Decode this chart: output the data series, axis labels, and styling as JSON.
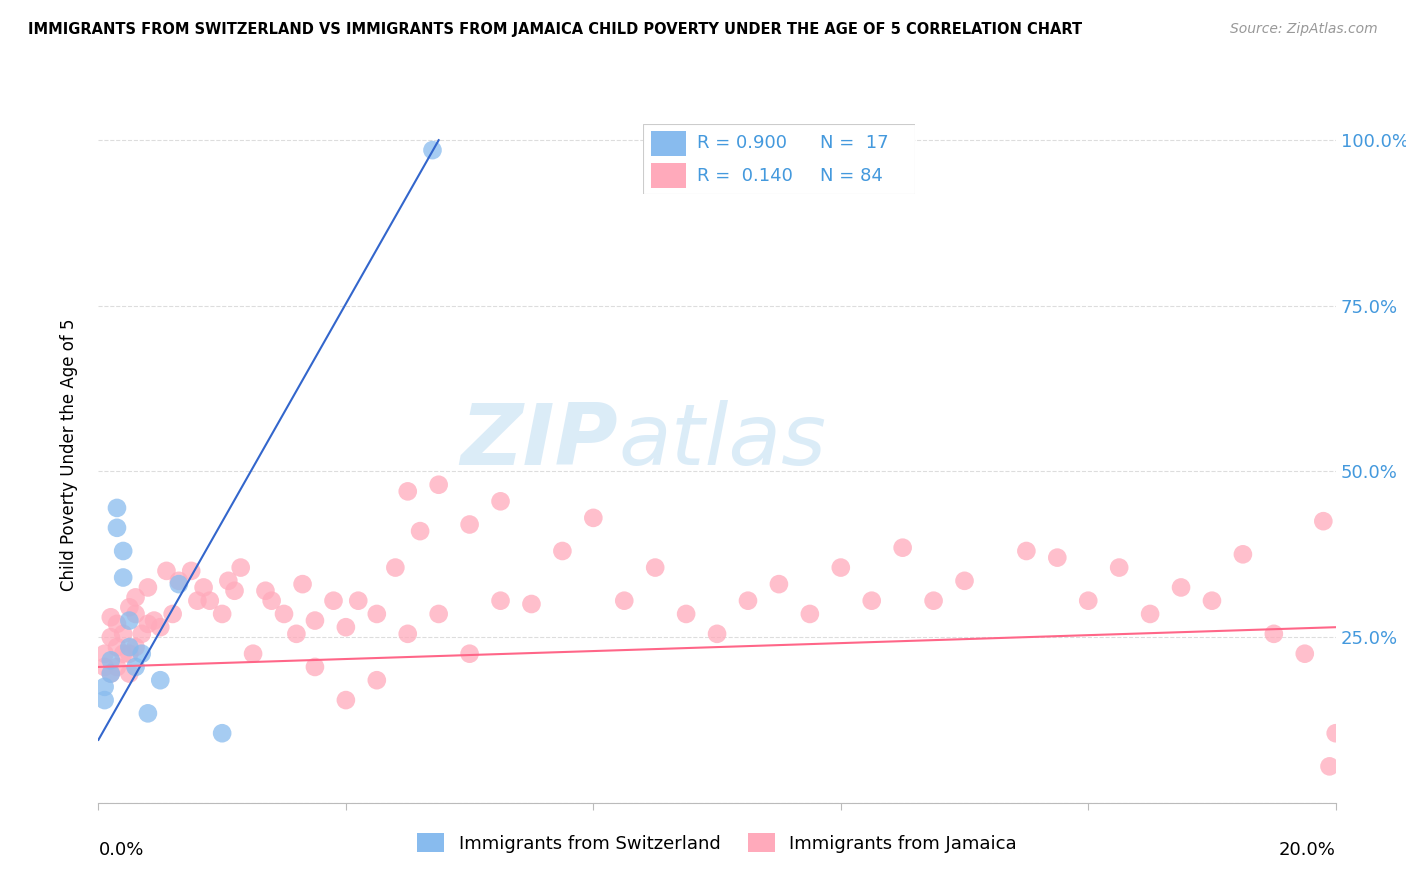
{
  "title": "IMMIGRANTS FROM SWITZERLAND VS IMMIGRANTS FROM JAMAICA CHILD POVERTY UNDER THE AGE OF 5 CORRELATION CHART",
  "source": "Source: ZipAtlas.com",
  "ylabel": "Child Poverty Under the Age of 5",
  "yticks": [
    0.0,
    0.25,
    0.5,
    0.75,
    1.0
  ],
  "ytick_labels": [
    "",
    "25.0%",
    "50.0%",
    "75.0%",
    "100.0%"
  ],
  "xlim": [
    0.0,
    0.2
  ],
  "ylim": [
    0.0,
    1.05
  ],
  "watermark1": "ZIP",
  "watermark2": "atlas",
  "color_swiss": "#88bbee",
  "color_jamaica": "#ffaabb",
  "color_swiss_line": "#3366cc",
  "color_jamaica_line": "#ff6688",
  "color_ytick": "#4499dd",
  "swiss_x": [
    0.001,
    0.001,
    0.002,
    0.002,
    0.003,
    0.003,
    0.004,
    0.004,
    0.005,
    0.005,
    0.006,
    0.007,
    0.008,
    0.01,
    0.013,
    0.02,
    0.054
  ],
  "swiss_y": [
    0.175,
    0.155,
    0.215,
    0.195,
    0.445,
    0.415,
    0.38,
    0.34,
    0.235,
    0.275,
    0.205,
    0.225,
    0.135,
    0.185,
    0.33,
    0.105,
    0.985
  ],
  "jamaica_x": [
    0.001,
    0.001,
    0.002,
    0.002,
    0.002,
    0.003,
    0.003,
    0.003,
    0.004,
    0.004,
    0.005,
    0.005,
    0.005,
    0.006,
    0.006,
    0.006,
    0.007,
    0.008,
    0.008,
    0.009,
    0.01,
    0.011,
    0.012,
    0.013,
    0.015,
    0.016,
    0.017,
    0.018,
    0.02,
    0.021,
    0.022,
    0.023,
    0.025,
    0.027,
    0.028,
    0.03,
    0.032,
    0.033,
    0.035,
    0.038,
    0.04,
    0.042,
    0.045,
    0.048,
    0.05,
    0.052,
    0.055,
    0.06,
    0.065,
    0.07,
    0.075,
    0.08,
    0.085,
    0.09,
    0.095,
    0.1,
    0.105,
    0.11,
    0.115,
    0.12,
    0.125,
    0.13,
    0.135,
    0.14,
    0.15,
    0.155,
    0.16,
    0.165,
    0.17,
    0.175,
    0.18,
    0.185,
    0.19,
    0.195,
    0.198,
    0.199,
    0.2,
    0.035,
    0.04,
    0.045,
    0.05,
    0.055,
    0.06,
    0.065
  ],
  "jamaica_y": [
    0.225,
    0.205,
    0.195,
    0.25,
    0.28,
    0.205,
    0.235,
    0.27,
    0.225,
    0.255,
    0.195,
    0.225,
    0.295,
    0.235,
    0.285,
    0.31,
    0.255,
    0.27,
    0.325,
    0.275,
    0.265,
    0.35,
    0.285,
    0.335,
    0.35,
    0.305,
    0.325,
    0.305,
    0.285,
    0.335,
    0.32,
    0.355,
    0.225,
    0.32,
    0.305,
    0.285,
    0.255,
    0.33,
    0.275,
    0.305,
    0.265,
    0.305,
    0.285,
    0.355,
    0.47,
    0.41,
    0.48,
    0.42,
    0.455,
    0.3,
    0.38,
    0.43,
    0.305,
    0.355,
    0.285,
    0.255,
    0.305,
    0.33,
    0.285,
    0.355,
    0.305,
    0.385,
    0.305,
    0.335,
    0.38,
    0.37,
    0.305,
    0.355,
    0.285,
    0.325,
    0.305,
    0.375,
    0.255,
    0.225,
    0.425,
    0.055,
    0.105,
    0.205,
    0.155,
    0.185,
    0.255,
    0.285,
    0.225,
    0.305
  ],
  "blue_line_x": [
    0.0,
    0.055
  ],
  "blue_line_y": [
    0.095,
    1.0
  ],
  "pink_line_x": [
    0.0,
    0.2
  ],
  "pink_line_y": [
    0.205,
    0.265
  ]
}
